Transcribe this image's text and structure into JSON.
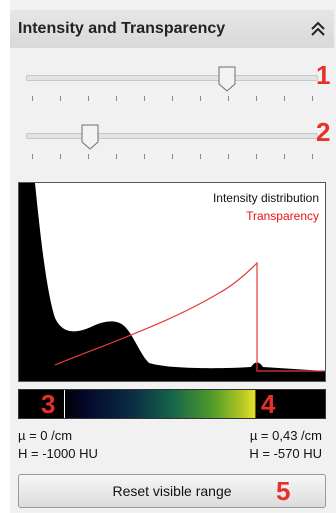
{
  "header": {
    "title": "Intensity and Transparency",
    "collapse_icon": "double-chevron-up-icon"
  },
  "sliders": [
    {
      "name": "upper",
      "value_fraction": 0.7,
      "marker_number": "1"
    },
    {
      "name": "lower",
      "value_fraction": 0.2,
      "marker_number": "2"
    }
  ],
  "chart": {
    "legend_intensity": "Intensity distribution",
    "legend_transparency": "Transparency",
    "colors": {
      "intensity": "#000000",
      "transparency": "#e53a3a"
    }
  },
  "colorbar": {
    "left_number": "3",
    "right_number": "4"
  },
  "info": {
    "left_mu": "µ = 0 /cm",
    "left_h": "H = -1000 HU",
    "right_mu": "µ = 0,43 /cm",
    "right_h": "H = -570 HU"
  },
  "reset_button": {
    "label": "Reset visible range",
    "marker_number": "5"
  },
  "colors": {
    "accent_numbers": "#e8302a"
  }
}
